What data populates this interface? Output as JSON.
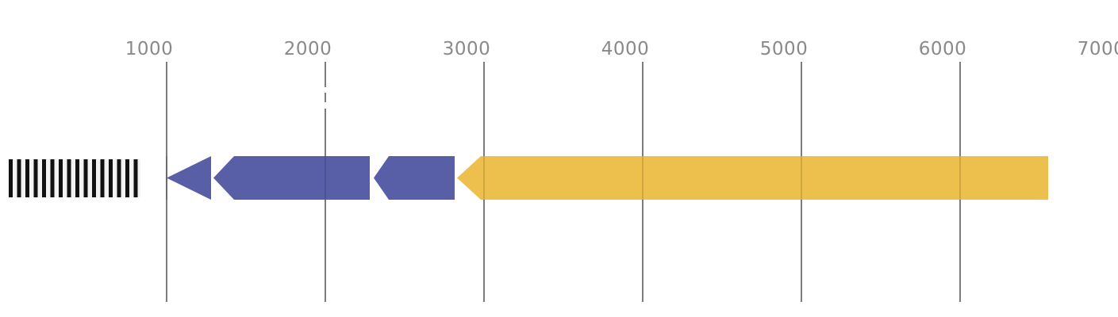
{
  "figure": {
    "type": "gene-annotation-map",
    "background_color": "#ffffff",
    "ruler": {
      "ticks": [
        "1000",
        "2000",
        "3000",
        "4000",
        "5000",
        "6000",
        "7000"
      ],
      "tick_values": [
        1000,
        2000,
        3000,
        4000,
        5000,
        6000,
        7000
      ],
      "axis_range": [
        0,
        7000
      ],
      "label_color": "#8a8a8a",
      "gridline_color": "#7d7d7d",
      "gridlines_shown_for": [
        1000,
        2000,
        3000,
        4000,
        5000,
        6000
      ],
      "gridline_dash_gap_at_tick": 2000
    },
    "features": [
      {
        "name": "hatched-region",
        "kind": "striped-box",
        "start": 0,
        "end": 860,
        "stripe_color": "#111111",
        "stripe_gap_color": "#f2f2f2",
        "border_color": "#ffffff"
      },
      {
        "name": "gene-arrow-1",
        "kind": "arrow",
        "strand": "reverse",
        "start": 1000,
        "end": 1280,
        "head_length": 280,
        "color": "#595fa7"
      },
      {
        "name": "gene-arrow-2",
        "kind": "arrow",
        "strand": "reverse",
        "start": 1295,
        "end": 2280,
        "head_length": 130,
        "color": "#595fa7"
      },
      {
        "name": "gene-arrow-3",
        "kind": "arrow",
        "strand": "reverse",
        "start": 2305,
        "end": 2815,
        "head_length": 95,
        "color": "#595fa7"
      },
      {
        "name": "gene-arrow-4",
        "kind": "arrow",
        "strand": "reverse",
        "start": 2830,
        "end": 6555,
        "head_length": 150,
        "color": "#edc04e"
      }
    ]
  }
}
